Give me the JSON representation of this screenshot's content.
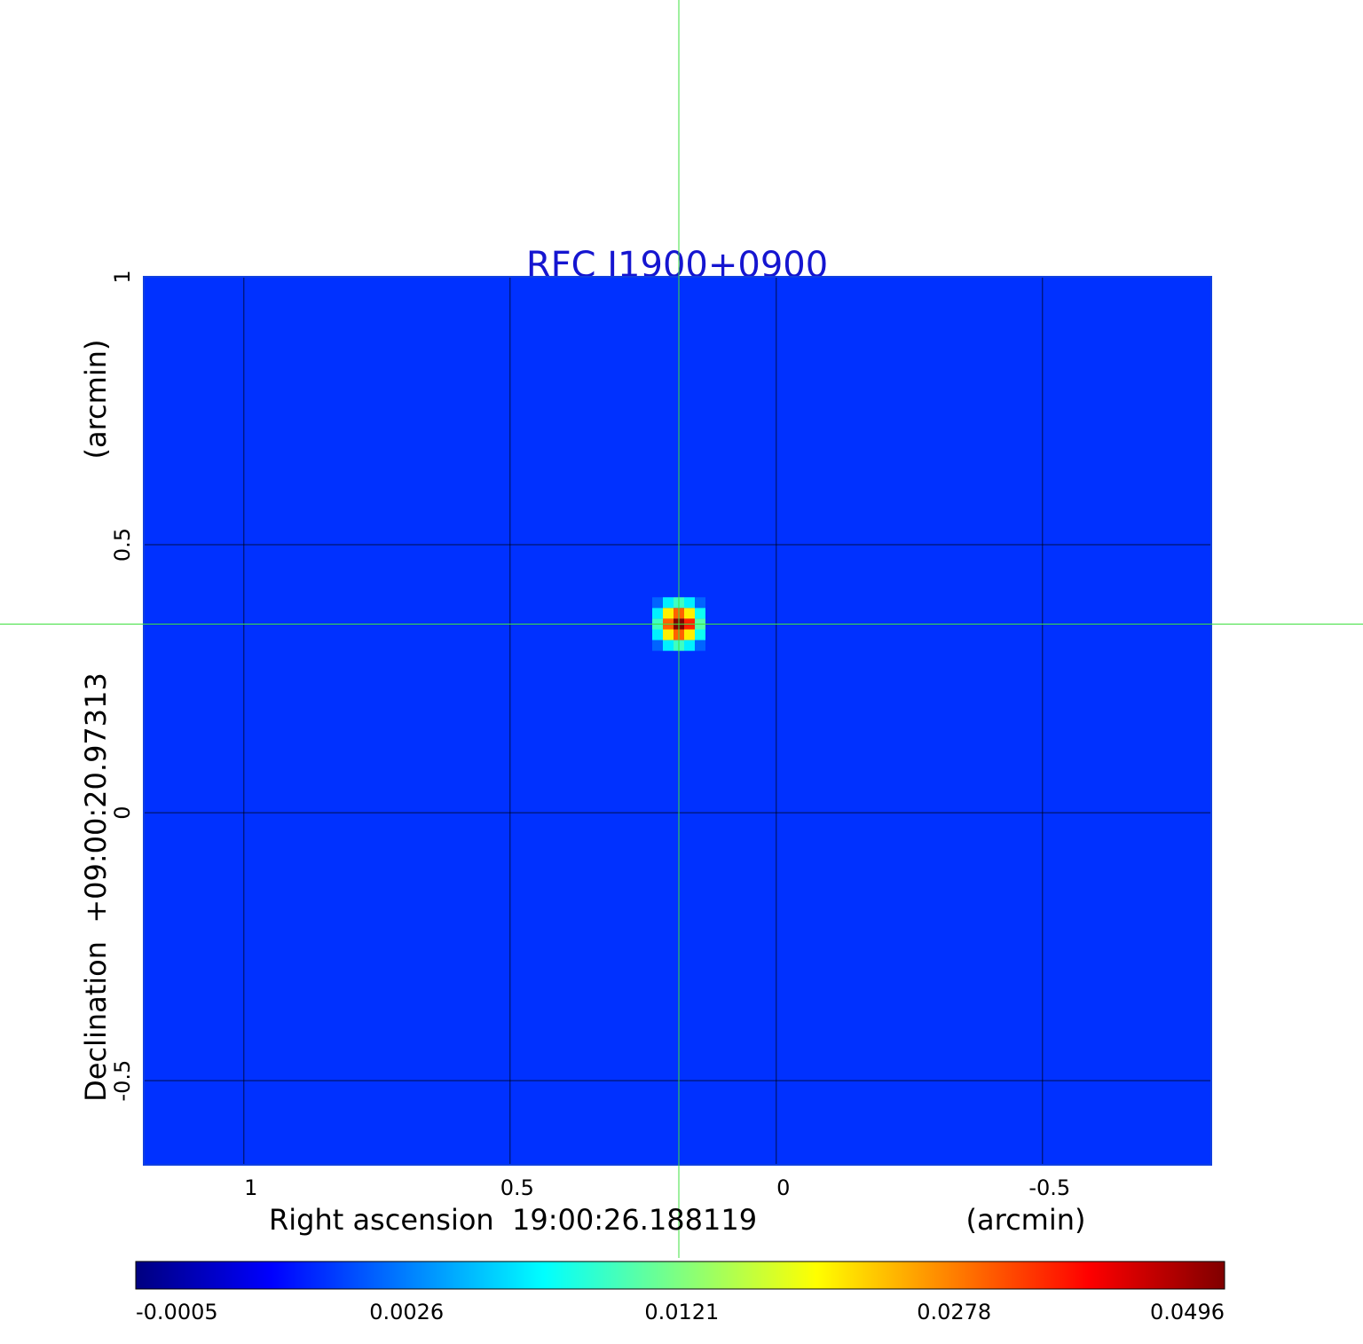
{
  "chart_data": {
    "type": "image",
    "title": "RFC J1900+0900",
    "xlabel": "Right ascension  19:00:26.188119",
    "xlabel_unit": "(arcmin)",
    "ylabel": "Declination  +09:00:20.97313",
    "ylabel_unit": "(arcmin)",
    "xlim": [
      1.188,
      -0.817
    ],
    "ylim": [
      -0.657,
      1.0
    ],
    "xticks": [
      1.0,
      0.5,
      0.0,
      -0.5
    ],
    "yticks": [
      1.0,
      0.5,
      0.0,
      -0.5
    ],
    "grid": true,
    "colormap": "jet",
    "color_scale": "sqrt",
    "clim": [
      -0.0005,
      0.0496
    ],
    "colorbar_ticks": [
      -0.0005,
      0.0026,
      0.0121,
      0.0278,
      0.0496
    ],
    "background": 0.001,
    "source": {
      "ra": 0.183,
      "dec": 0.352,
      "pixel_size": 0.02,
      "pixels": [
        [
          0.002,
          0.006,
          0.009,
          0.006,
          0.002
        ],
        [
          0.006,
          0.02,
          0.03,
          0.02,
          0.007
        ],
        [
          0.009,
          0.03,
          0.0496,
          0.035,
          0.01
        ],
        [
          0.006,
          0.02,
          0.03,
          0.02,
          0.007
        ],
        [
          0.002,
          0.006,
          0.009,
          0.006,
          0.002
        ]
      ]
    }
  }
}
